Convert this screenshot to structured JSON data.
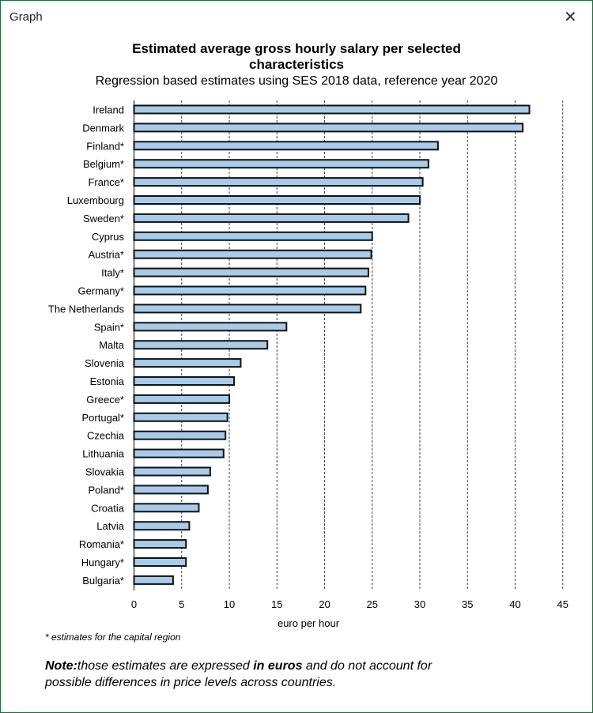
{
  "window": {
    "title": "Graph",
    "close_icon": "close-icon"
  },
  "chart_data": {
    "type": "bar",
    "orientation": "horizontal",
    "title": "Estimated average gross hourly salary per selected characteristics",
    "subtitle": "Regression based estimates using SES 2018 data, reference year 2020",
    "xlabel": "euro per hour",
    "xlim": [
      0,
      45
    ],
    "xticks": [
      0,
      5,
      10,
      15,
      20,
      25,
      30,
      35,
      40,
      45
    ],
    "grid": "vertical dashed",
    "bar_color": "#a9cbea",
    "categories": [
      "Ireland",
      "Denmark",
      "Finland*",
      "Belgium*",
      "France*",
      "Luxembourg",
      "Sweden*",
      "Cyprus",
      "Austria*",
      "Italy*",
      "Germany*",
      "The Netherlands",
      "Spain*",
      "Malta",
      "Slovenia",
      "Estonia",
      "Greece*",
      "Portugal*",
      "Czechia",
      "Lithuania",
      "Slovakia",
      "Poland*",
      "Croatia",
      "Latvia",
      "Romania*",
      "Hungary*",
      "Bulgaria*"
    ],
    "values": [
      41.5,
      40.8,
      31.9,
      30.9,
      30.3,
      30.0,
      28.8,
      25.0,
      24.9,
      24.6,
      24.3,
      23.8,
      16.0,
      14.0,
      11.2,
      10.5,
      10.0,
      9.8,
      9.6,
      9.4,
      8.0,
      7.75,
      6.8,
      5.8,
      5.45,
      5.45,
      4.1
    ]
  },
  "footnote": "* estimates for the capital region",
  "note": {
    "label": "Note:",
    "text1": "those estimates are expressed ",
    "bold": "in euros",
    "text2": " and do not account for possible differences in price levels across countries."
  }
}
